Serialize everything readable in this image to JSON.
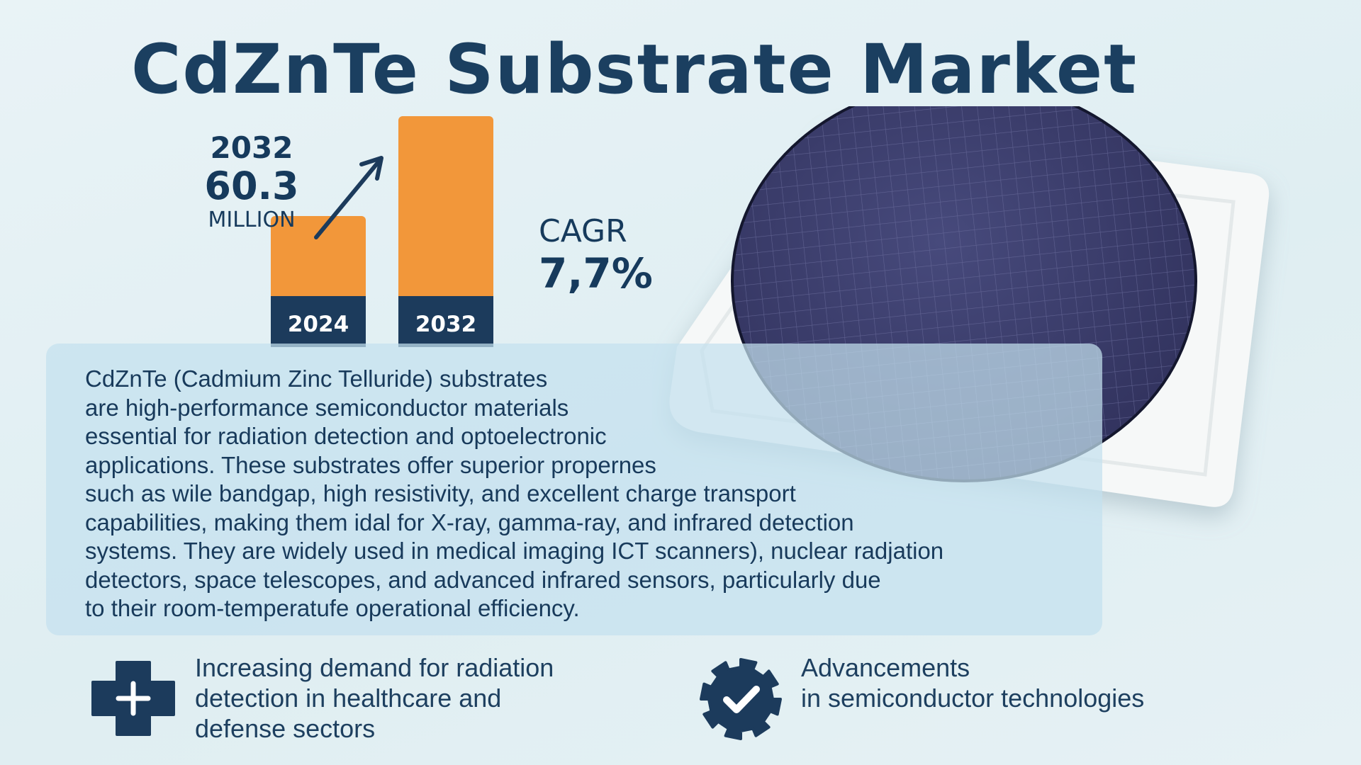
{
  "title": "CdZnTe Substrate Market",
  "callout": {
    "year": "2032",
    "value": "60.3",
    "unit": "MILLION"
  },
  "cagr": {
    "label": "CAGR",
    "value": "7,7%"
  },
  "chart_data": {
    "type": "bar",
    "categories": [
      "2024",
      "2032"
    ],
    "values": [
      33.4,
      60.3
    ],
    "callout": "2032 60.3 MILLION",
    "cagr": "7,7%",
    "colors": {
      "bar": "#f2973a",
      "base": "#1c3b5c",
      "label": "#ffffff",
      "arrow": "#1c3b5c"
    }
  },
  "description": "CdZnTe (Cadmium Zinc Telluride) substrates\nare high-performance semiconductor materials\nessential for radiation detection and optoelectronic\napplications. These substrates offer superior propernes\nsuch as wile bandgap, high resistivity, and excellent charge transport\ncapabilities, making them idal for X-ray, gamma-ray, and infrared detection\nsystems. They are widely used in medical imaging ICT scanners), nuclear radjation\ndetectors, space telescopes, and advanced infrared sensors, particularly due\nto their room-temperatufe operational efficiency.",
  "features": [
    {
      "icon": "medical-cross-icon",
      "text": "Increasing demand for radiation\ndetection in healthcare and\ndefense sectors"
    },
    {
      "icon": "gear-check-icon",
      "text": "Advancements\nin semiconductor technologies"
    }
  ],
  "colors": {
    "navy": "#1c3b5c",
    "orange": "#f2973a",
    "wafer": "#3c3d6c",
    "background": "#e4f0f4"
  }
}
